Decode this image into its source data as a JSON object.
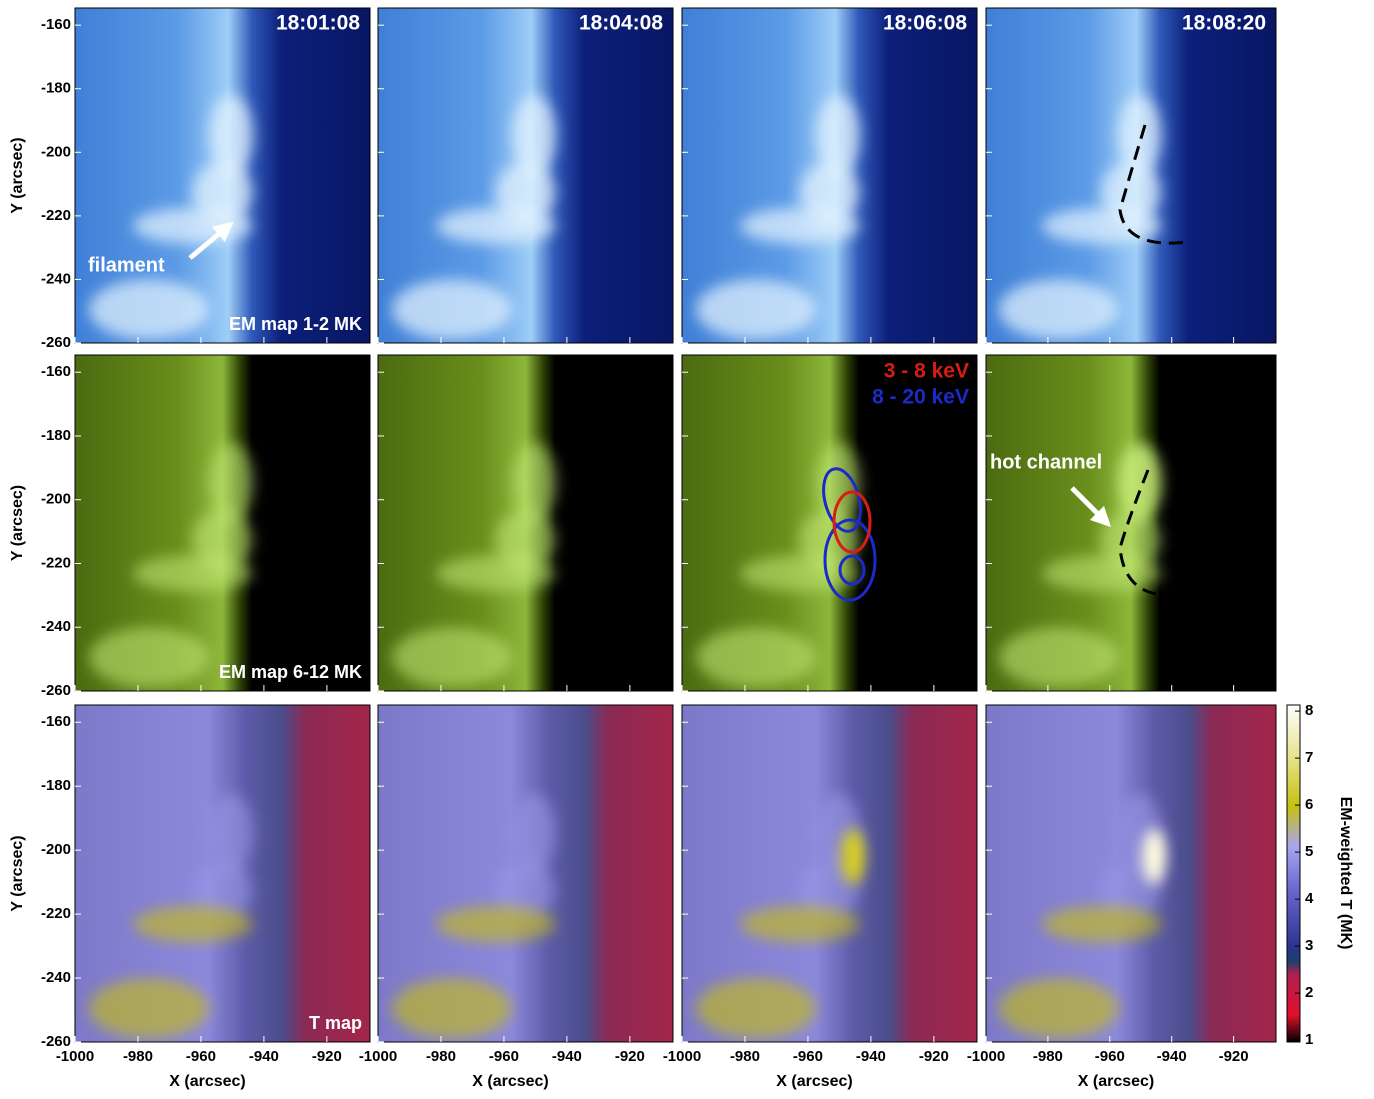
{
  "times": [
    "18:01:08",
    "18:04:08",
    "18:06:08",
    "18:08:20"
  ],
  "rows": [
    {
      "label": "EM map 1-2 MK"
    },
    {
      "label": "EM map 6-12 MK"
    },
    {
      "label": "T map"
    }
  ],
  "x_axis": {
    "label": "X (arcsec)",
    "lim": [
      -1000,
      -906.3
    ],
    "ticks": [
      -1000,
      -980,
      -960,
      -940,
      -920
    ]
  },
  "y_axis": {
    "label": "Y (arcsec)",
    "lim": [
      -260,
      -154.6
    ],
    "ticks": [
      -260,
      -240,
      -220,
      -200,
      -180,
      -160
    ]
  },
  "annotations": {
    "filament": "filament",
    "hot_channel": "hot channel",
    "contour_low": "3 - 8 keV",
    "contour_high": "8 - 20 keV"
  },
  "colorbar": {
    "label": "EM-weighted T (MK)",
    "lim": [
      0.96,
      8.13
    ],
    "ticks": [
      1,
      2,
      3,
      4,
      5,
      6,
      7,
      8
    ]
  }
}
